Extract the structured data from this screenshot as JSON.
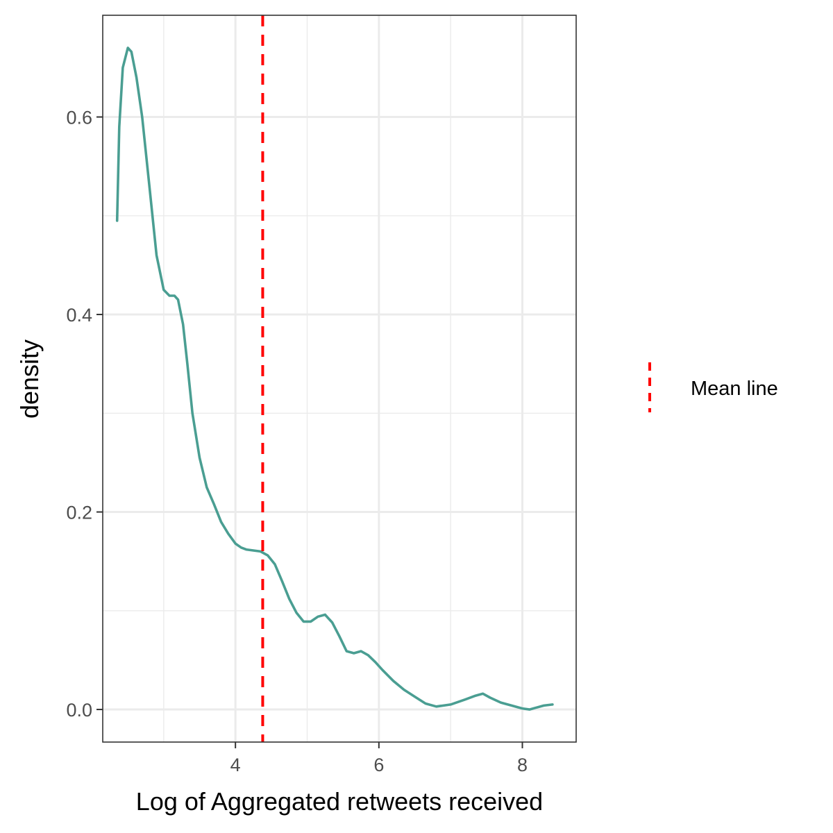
{
  "chart_data": {
    "type": "line",
    "xlabel": "Log of Aggregated retweets received",
    "ylabel": "density",
    "xlim": [
      2.15,
      8.75
    ],
    "ylim": [
      -0.033,
      0.703
    ],
    "x_ticks": [
      {
        "value": 4,
        "label": "4"
      },
      {
        "value": 6,
        "label": "6"
      },
      {
        "value": 8,
        "label": "8"
      }
    ],
    "x_minor_ticks": [
      3,
      5,
      7
    ],
    "y_ticks": [
      {
        "value": 0.0,
        "label": "0.0"
      },
      {
        "value": 0.2,
        "label": "0.2"
      },
      {
        "value": 0.4,
        "label": "0.4"
      },
      {
        "value": 0.6,
        "label": "0.6"
      }
    ],
    "y_minor_ticks": [
      0.1,
      0.3,
      0.5
    ],
    "grid": true,
    "series": [
      {
        "color": "#4a9e92",
        "x": [
          2.35,
          2.38,
          2.43,
          2.5,
          2.55,
          2.62,
          2.7,
          2.8,
          2.9,
          3.0,
          3.08,
          3.15,
          3.2,
          3.27,
          3.33,
          3.4,
          3.5,
          3.6,
          3.7,
          3.8,
          3.9,
          4.0,
          4.08,
          4.15,
          4.25,
          4.35,
          4.45,
          4.55,
          4.65,
          4.75,
          4.85,
          4.95,
          5.05,
          5.15,
          5.25,
          5.35,
          5.45,
          5.55,
          5.65,
          5.75,
          5.85,
          5.95,
          6.05,
          6.2,
          6.35,
          6.5,
          6.65,
          6.8,
          7.0,
          7.2,
          7.35,
          7.45,
          7.55,
          7.7,
          7.85,
          8.0,
          8.1,
          8.2,
          8.3,
          8.42
        ],
        "y": [
          0.495,
          0.59,
          0.65,
          0.67,
          0.666,
          0.64,
          0.6,
          0.53,
          0.46,
          0.425,
          0.419,
          0.419,
          0.415,
          0.39,
          0.35,
          0.3,
          0.255,
          0.225,
          0.208,
          0.19,
          0.178,
          0.168,
          0.164,
          0.162,
          0.161,
          0.16,
          0.156,
          0.147,
          0.13,
          0.112,
          0.098,
          0.089,
          0.089,
          0.094,
          0.096,
          0.088,
          0.074,
          0.059,
          0.057,
          0.059,
          0.055,
          0.048,
          0.04,
          0.029,
          0.02,
          0.013,
          0.006,
          0.003,
          0.005,
          0.01,
          0.014,
          0.016,
          0.012,
          0.007,
          0.004,
          0.001,
          0.0,
          0.002,
          0.004,
          0.005
        ]
      }
    ],
    "reference_line": {
      "x": 4.38,
      "color": "#ff0000",
      "style": "dashed",
      "legend_label": "Mean line"
    },
    "legend_placement": "right"
  }
}
